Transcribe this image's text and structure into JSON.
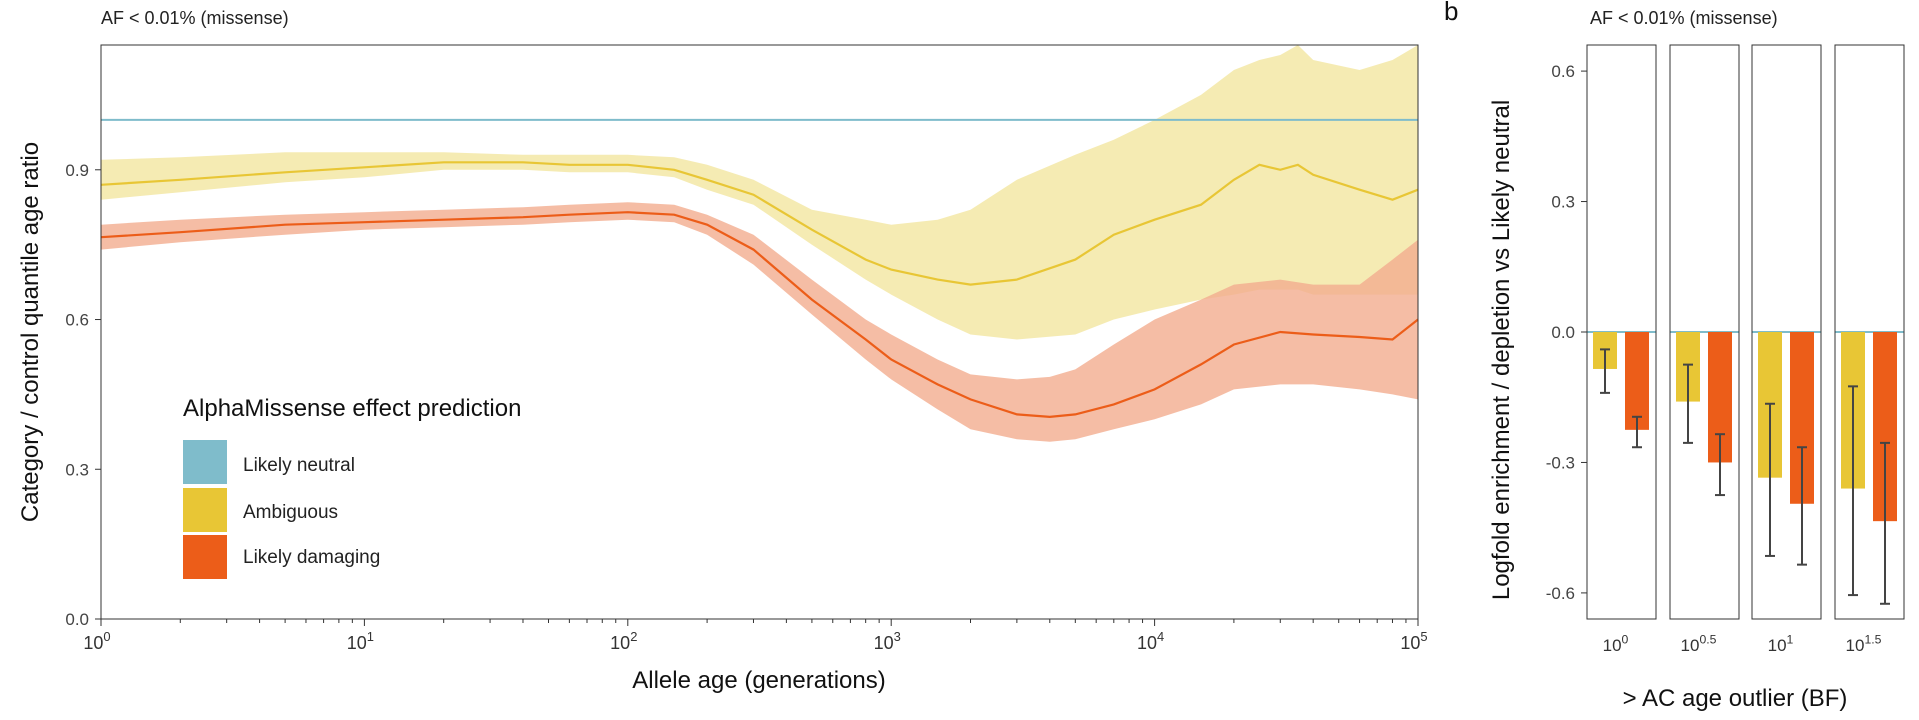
{
  "panel_b_letter": "b",
  "chart_data": [
    {
      "type": "line",
      "title": "AF < 0.01% (missense)",
      "xlabel": "Allele age (generations)",
      "ylabel": "Category / control quantile age ratio",
      "x_scale": "log10",
      "xlim": [
        1,
        100000
      ],
      "ylim": [
        0,
        1.15
      ],
      "x_ticks": [
        {
          "value": 1,
          "base": "10",
          "exp": "0"
        },
        {
          "value": 10,
          "base": "10",
          "exp": "1"
        },
        {
          "value": 100,
          "base": "10",
          "exp": "2"
        },
        {
          "value": 1000,
          "base": "10",
          "exp": "3"
        },
        {
          "value": 10000,
          "base": "10",
          "exp": "4"
        },
        {
          "value": 100000,
          "base": "10",
          "exp": "5"
        }
      ],
      "y_ticks": [
        "0.0",
        "0.3",
        "0.6",
        "0.9"
      ],
      "legend": {
        "title": "AlphaMissense effect prediction",
        "position": "bottom-left",
        "items": [
          "Likely neutral",
          "Ambiguous",
          "Likely damaging"
        ]
      },
      "colors": {
        "Likely neutral": "#7fbccb",
        "Ambiguous": "#e8c635",
        "Ambiguous_band": "#f3e6a0",
        "Likely damaging": "#ec5d19",
        "Likely damaging_band": "#f2ad8f"
      },
      "series": [
        {
          "name": "Likely neutral",
          "x": [
            1,
            100000
          ],
          "y": [
            1.0,
            1.0
          ]
        },
        {
          "name": "Ambiguous",
          "x": [
            1,
            2,
            5,
            10,
            20,
            40,
            60,
            100,
            150,
            200,
            300,
            500,
            800,
            1000,
            1500,
            2000,
            3000,
            5000,
            7000,
            10000,
            15000,
            20000,
            25000,
            30000,
            35000,
            40000,
            60000,
            80000,
            100000
          ],
          "y": [
            0.87,
            0.88,
            0.895,
            0.905,
            0.915,
            0.915,
            0.91,
            0.91,
            0.9,
            0.88,
            0.85,
            0.78,
            0.72,
            0.7,
            0.68,
            0.67,
            0.68,
            0.72,
            0.77,
            0.8,
            0.83,
            0.88,
            0.91,
            0.9,
            0.91,
            0.89,
            0.86,
            0.84,
            0.86
          ],
          "lower": [
            0.84,
            0.855,
            0.875,
            0.885,
            0.9,
            0.9,
            0.895,
            0.895,
            0.885,
            0.86,
            0.83,
            0.75,
            0.68,
            0.65,
            0.6,
            0.57,
            0.56,
            0.57,
            0.6,
            0.62,
            0.64,
            0.65,
            0.66,
            0.66,
            0.66,
            0.65,
            0.65,
            0.65,
            0.65
          ],
          "upper": [
            0.92,
            0.925,
            0.935,
            0.935,
            0.935,
            0.93,
            0.93,
            0.93,
            0.925,
            0.91,
            0.88,
            0.82,
            0.8,
            0.79,
            0.8,
            0.82,
            0.88,
            0.93,
            0.96,
            1.0,
            1.05,
            1.1,
            1.12,
            1.13,
            1.15,
            1.12,
            1.1,
            1.12,
            1.16
          ]
        },
        {
          "name": "Likely damaging",
          "x": [
            1,
            2,
            5,
            10,
            20,
            40,
            60,
            100,
            150,
            200,
            300,
            500,
            800,
            1000,
            1500,
            2000,
            3000,
            4000,
            5000,
            7000,
            10000,
            15000,
            20000,
            30000,
            40000,
            60000,
            80000,
            100000
          ],
          "y": [
            0.765,
            0.775,
            0.79,
            0.795,
            0.8,
            0.805,
            0.81,
            0.815,
            0.81,
            0.79,
            0.74,
            0.64,
            0.56,
            0.52,
            0.47,
            0.44,
            0.41,
            0.405,
            0.41,
            0.43,
            0.46,
            0.51,
            0.55,
            0.575,
            0.57,
            0.565,
            0.56,
            0.6
          ],
          "lower": [
            0.74,
            0.755,
            0.77,
            0.78,
            0.785,
            0.79,
            0.795,
            0.8,
            0.795,
            0.77,
            0.71,
            0.61,
            0.52,
            0.48,
            0.42,
            0.38,
            0.36,
            0.355,
            0.36,
            0.38,
            0.4,
            0.43,
            0.46,
            0.47,
            0.47,
            0.46,
            0.45,
            0.44
          ],
          "upper": [
            0.79,
            0.8,
            0.81,
            0.815,
            0.82,
            0.825,
            0.83,
            0.835,
            0.83,
            0.81,
            0.77,
            0.68,
            0.6,
            0.57,
            0.52,
            0.49,
            0.48,
            0.485,
            0.5,
            0.55,
            0.6,
            0.64,
            0.67,
            0.68,
            0.67,
            0.67,
            0.72,
            0.76
          ]
        }
      ]
    },
    {
      "type": "bar",
      "title": "AF < 0.01% (missense)",
      "xlabel": "> AC age outlier (BF)",
      "ylabel": "Logfold enrichment / depletion vs Likely neutral",
      "ylim": [
        -0.66,
        0.66
      ],
      "y_ticks": [
        "-0.6",
        "-0.3",
        "0.0",
        "0.3",
        "0.6"
      ],
      "baseline_color": "#7fbccb",
      "facets": [
        {
          "base": "10",
          "exp": "0",
          "bars": [
            {
              "series": "Ambiguous",
              "value": -0.085,
              "err_low": -0.14,
              "err_high": -0.04
            },
            {
              "series": "Likely damaging",
              "value": -0.225,
              "err_low": -0.265,
              "err_high": -0.195
            }
          ]
        },
        {
          "base": "10",
          "exp": "0.5",
          "bars": [
            {
              "series": "Ambiguous",
              "value": -0.16,
              "err_low": -0.255,
              "err_high": -0.075
            },
            {
              "series": "Likely damaging",
              "value": -0.3,
              "err_low": -0.375,
              "err_high": -0.235
            }
          ]
        },
        {
          "base": "10",
          "exp": "1",
          "bars": [
            {
              "series": "Ambiguous",
              "value": -0.335,
              "err_low": -0.515,
              "err_high": -0.165
            },
            {
              "series": "Likely damaging",
              "value": -0.395,
              "err_low": -0.535,
              "err_high": -0.265
            }
          ]
        },
        {
          "base": "10",
          "exp": "1.5",
          "bars": [
            {
              "series": "Ambiguous",
              "value": -0.36,
              "err_low": -0.605,
              "err_high": -0.125
            },
            {
              "series": "Likely damaging",
              "value": -0.435,
              "err_low": -0.625,
              "err_high": -0.255
            }
          ]
        }
      ]
    }
  ]
}
